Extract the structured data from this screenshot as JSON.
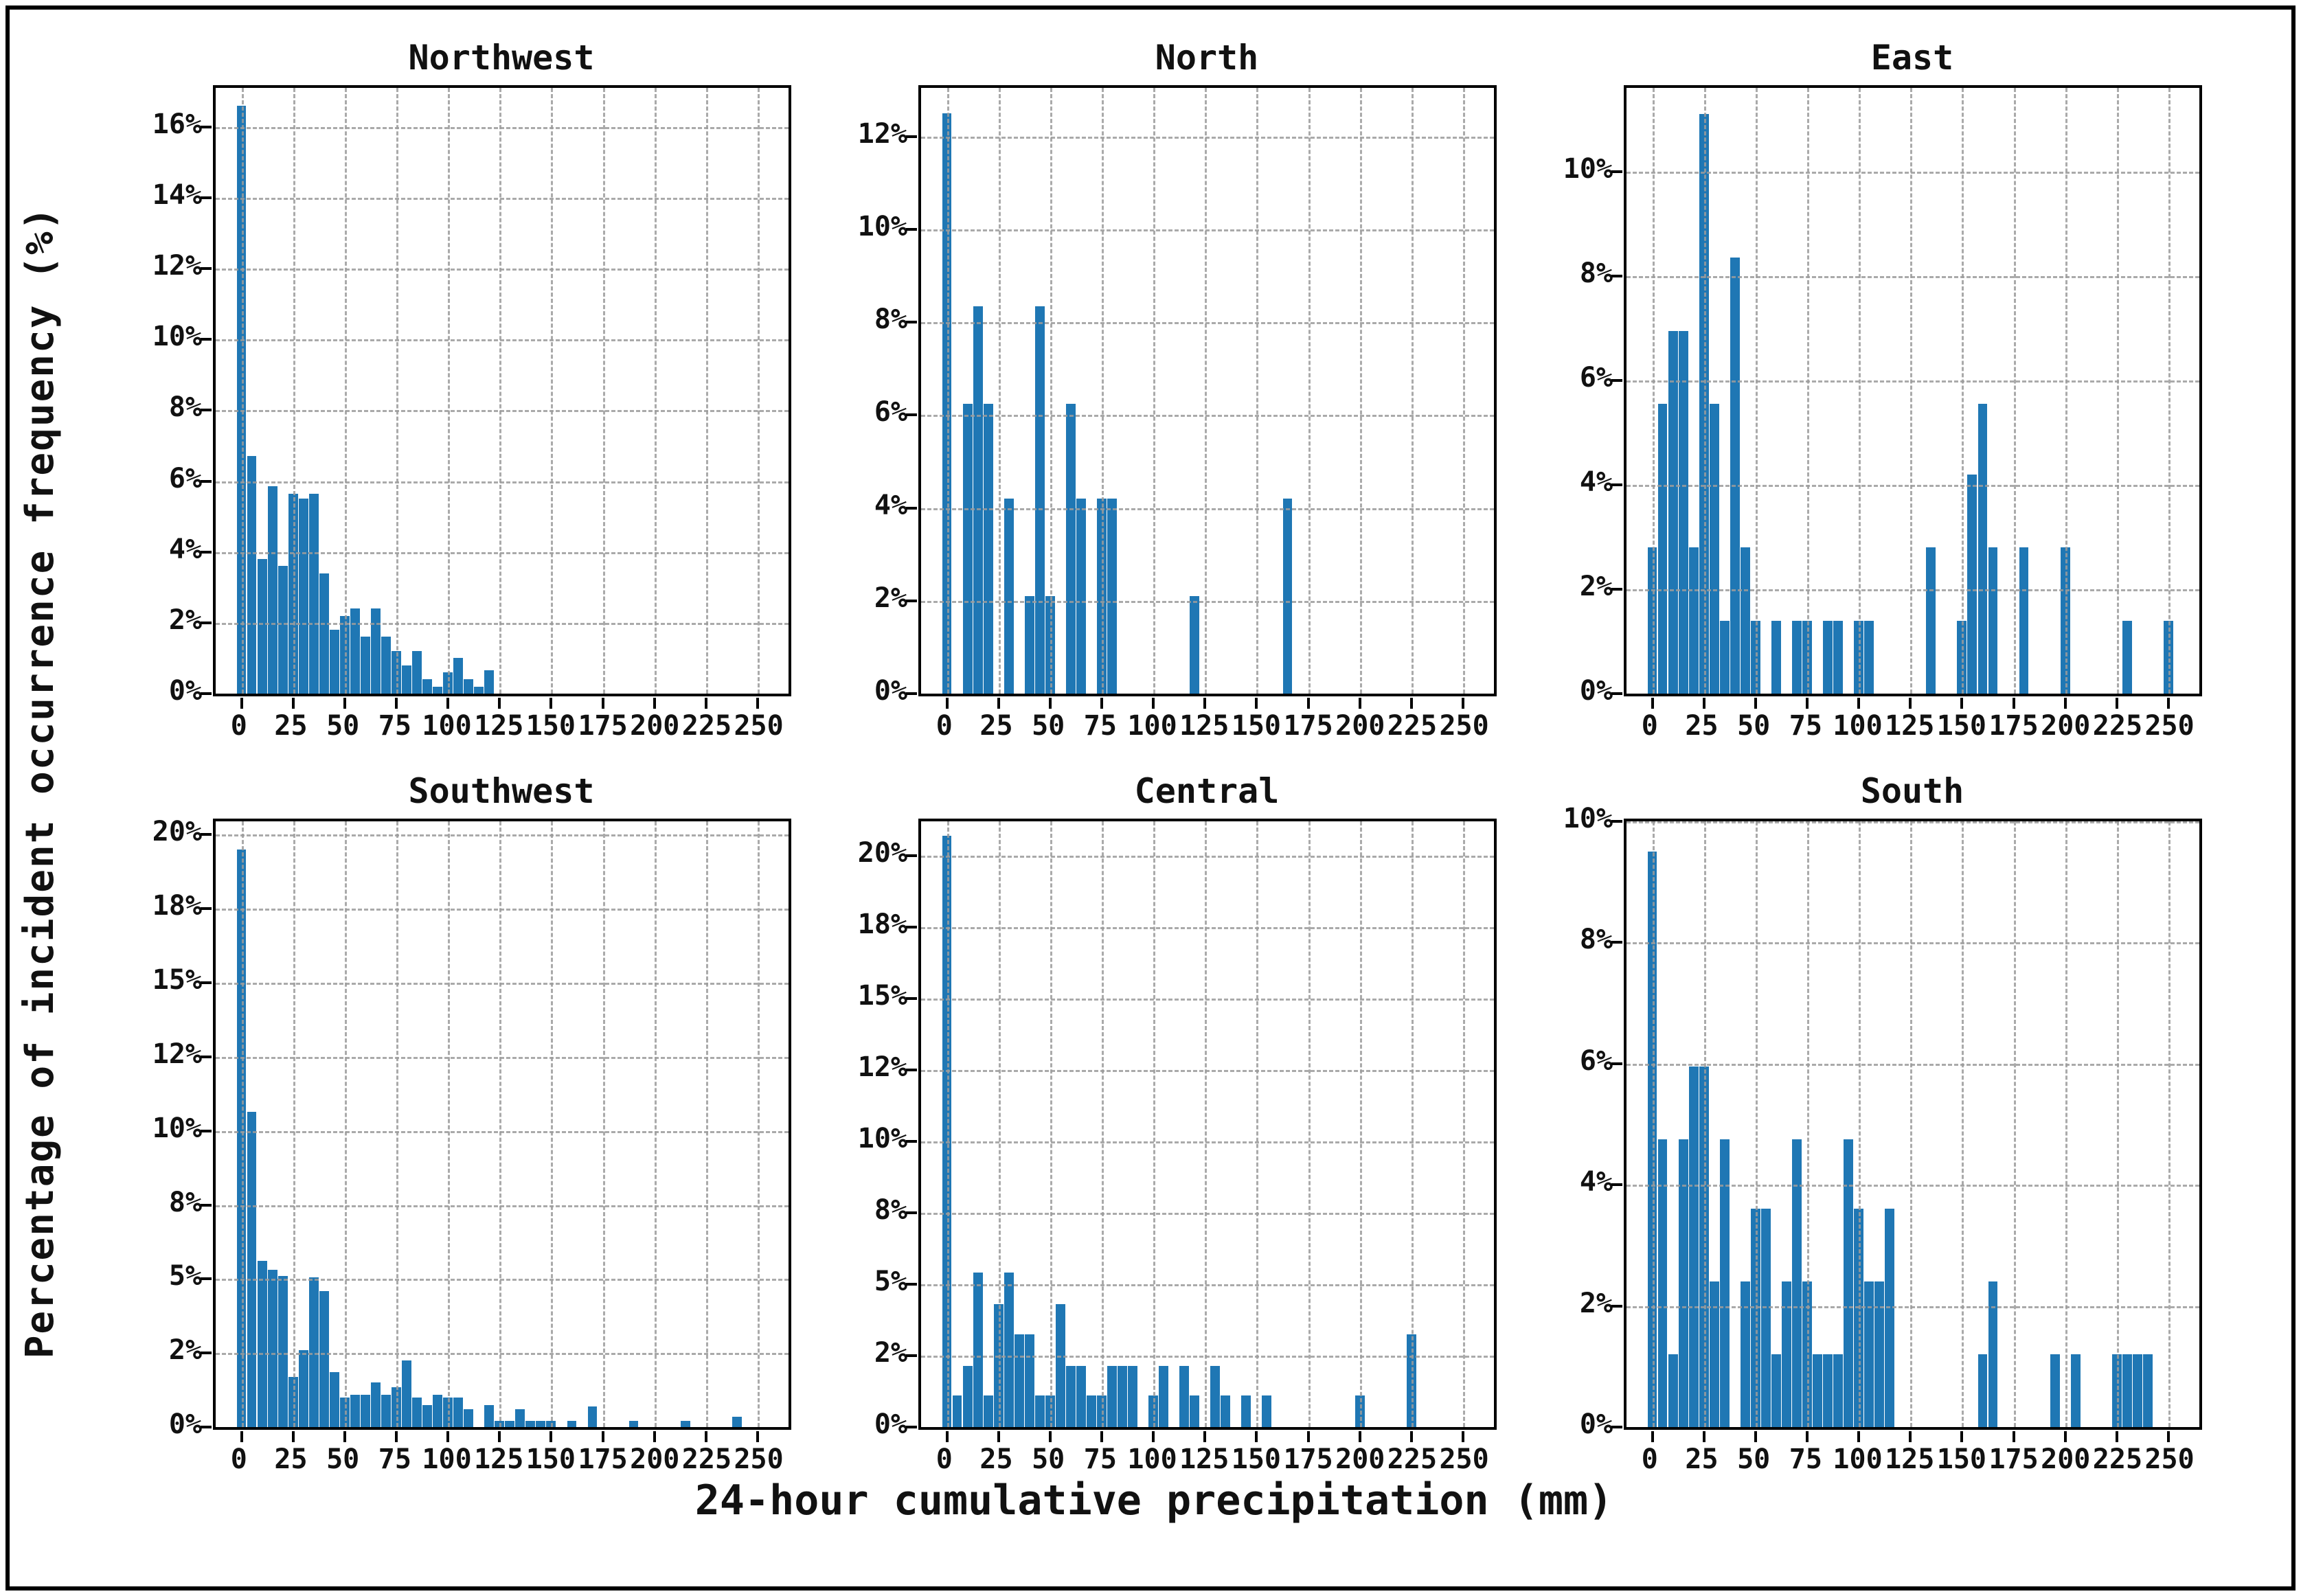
{
  "figure": {
    "ylabel": "Percentage of incident occurrence frequency (%)",
    "xlabel": "24-hour cumulative precipitation (mm)",
    "bar_color": "#1f77b4",
    "grid_color": "#9c9c9c",
    "axis_color": "#000000",
    "xlim": [
      -12.5,
      265
    ],
    "xticks": [
      0,
      25,
      50,
      75,
      100,
      125,
      150,
      175,
      200,
      225,
      250
    ],
    "bin_width_mm": 5,
    "grid": "dashed, drawn over bars",
    "layout": "2 rows x 3 columns of histograms, shared axis labels"
  },
  "chart_data": [
    {
      "type": "bar",
      "title": "Northwest",
      "xlabel": "24-hour cumulative precipitation (mm)",
      "ylabel": "Percentage of incident occurrence frequency (%)",
      "ylim": [
        0,
        17.1
      ],
      "yticks": [
        {
          "v": 0,
          "label": "0%"
        },
        {
          "v": 2,
          "label": "2%"
        },
        {
          "v": 4,
          "label": "4%"
        },
        {
          "v": 6,
          "label": "6%"
        },
        {
          "v": 8,
          "label": "8%"
        },
        {
          "v": 10,
          "label": "10%"
        },
        {
          "v": 12,
          "label": "12%"
        },
        {
          "v": 14,
          "label": "14%"
        },
        {
          "v": 16,
          "label": "16%"
        }
      ],
      "bars": [
        [
          0,
          16.6
        ],
        [
          5,
          6.7
        ],
        [
          10,
          3.8
        ],
        [
          15,
          5.85
        ],
        [
          20,
          3.6
        ],
        [
          25,
          5.65
        ],
        [
          30,
          5.5
        ],
        [
          35,
          5.65
        ],
        [
          40,
          3.4
        ],
        [
          45,
          1.8
        ],
        [
          50,
          2.2
        ],
        [
          55,
          2.4
        ],
        [
          60,
          1.6
        ],
        [
          65,
          2.4
        ],
        [
          70,
          1.6
        ],
        [
          75,
          1.2
        ],
        [
          80,
          0.8
        ],
        [
          85,
          1.2
        ],
        [
          90,
          0.4
        ],
        [
          95,
          0.2
        ],
        [
          100,
          0.6
        ],
        [
          105,
          1.0
        ],
        [
          110,
          0.4
        ],
        [
          115,
          0.2
        ],
        [
          120,
          0.65
        ]
      ]
    },
    {
      "type": "bar",
      "title": "North",
      "xlabel": "24-hour cumulative precipitation (mm)",
      "ylabel": "Percentage of incident occurrence frequency (%)",
      "ylim": [
        0,
        13.05
      ],
      "yticks": [
        {
          "v": 0,
          "label": "0%"
        },
        {
          "v": 2,
          "label": "2%"
        },
        {
          "v": 4,
          "label": "4%"
        },
        {
          "v": 6,
          "label": "6%"
        },
        {
          "v": 8,
          "label": "8%"
        },
        {
          "v": 10,
          "label": "10%"
        },
        {
          "v": 12,
          "label": "12%"
        }
      ],
      "bars": [
        [
          0,
          12.5
        ],
        [
          10,
          6.25
        ],
        [
          15,
          8.35
        ],
        [
          20,
          6.25
        ],
        [
          30,
          4.2
        ],
        [
          40,
          2.1
        ],
        [
          45,
          8.35
        ],
        [
          50,
          2.1
        ],
        [
          60,
          6.25
        ],
        [
          65,
          4.2
        ],
        [
          75,
          4.2
        ],
        [
          80,
          4.2
        ],
        [
          120,
          2.1
        ],
        [
          165,
          4.2
        ]
      ]
    },
    {
      "type": "bar",
      "title": "East",
      "xlabel": "24-hour cumulative precipitation (mm)",
      "ylabel": "Percentage of incident occurrence frequency (%)",
      "ylim": [
        0,
        11.6
      ],
      "yticks": [
        {
          "v": 0,
          "label": "0%"
        },
        {
          "v": 2,
          "label": "2%"
        },
        {
          "v": 4,
          "label": "4%"
        },
        {
          "v": 6,
          "label": "6%"
        },
        {
          "v": 8,
          "label": "8%"
        },
        {
          "v": 10,
          "label": "10%"
        }
      ],
      "bars": [
        [
          0,
          2.8
        ],
        [
          5,
          5.55
        ],
        [
          10,
          6.95
        ],
        [
          15,
          6.95
        ],
        [
          20,
          2.8
        ],
        [
          25,
          11.1
        ],
        [
          30,
          5.55
        ],
        [
          35,
          1.4
        ],
        [
          40,
          8.35
        ],
        [
          45,
          2.8
        ],
        [
          50,
          1.4
        ],
        [
          60,
          1.4
        ],
        [
          70,
          1.4
        ],
        [
          75,
          1.4
        ],
        [
          85,
          1.4
        ],
        [
          90,
          1.4
        ],
        [
          100,
          1.4
        ],
        [
          105,
          1.4
        ],
        [
          135,
          2.8
        ],
        [
          150,
          1.4
        ],
        [
          155,
          4.2
        ],
        [
          160,
          5.55
        ],
        [
          165,
          2.8
        ],
        [
          180,
          2.8
        ],
        [
          200,
          2.8
        ],
        [
          230,
          1.4
        ],
        [
          250,
          1.4
        ]
      ]
    },
    {
      "type": "bar",
      "title": "Southwest",
      "xlabel": "24-hour cumulative precipitation (mm)",
      "ylabel": "Percentage of incident occurrence frequency (%)",
      "ylim": [
        0,
        20.45
      ],
      "yticks": [
        {
          "v": 0,
          "label": "0%"
        },
        {
          "v": 2.5,
          "label": "2%"
        },
        {
          "v": 5,
          "label": "5%"
        },
        {
          "v": 7.5,
          "label": "8%"
        },
        {
          "v": 10,
          "label": "10%"
        },
        {
          "v": 12.5,
          "label": "12%"
        },
        {
          "v": 15,
          "label": "15%"
        },
        {
          "v": 17.5,
          "label": "18%"
        },
        {
          "v": 20,
          "label": "20%"
        }
      ],
      "bars": [
        [
          0,
          19.5
        ],
        [
          5,
          10.65
        ],
        [
          10,
          5.6
        ],
        [
          15,
          5.3
        ],
        [
          20,
          5.1
        ],
        [
          25,
          1.7
        ],
        [
          30,
          2.6
        ],
        [
          35,
          5.05
        ],
        [
          40,
          4.6
        ],
        [
          45,
          1.85
        ],
        [
          50,
          1.0
        ],
        [
          55,
          1.1
        ],
        [
          60,
          1.1
        ],
        [
          65,
          1.5
        ],
        [
          70,
          1.1
        ],
        [
          75,
          1.35
        ],
        [
          80,
          2.25
        ],
        [
          85,
          1.0
        ],
        [
          90,
          0.75
        ],
        [
          95,
          1.1
        ],
        [
          100,
          1.0
        ],
        [
          105,
          1.0
        ],
        [
          110,
          0.6
        ],
        [
          120,
          0.75
        ],
        [
          125,
          0.2
        ],
        [
          130,
          0.2
        ],
        [
          135,
          0.6
        ],
        [
          140,
          0.2
        ],
        [
          145,
          0.2
        ],
        [
          150,
          0.2
        ],
        [
          160,
          0.2
        ],
        [
          170,
          0.7
        ],
        [
          190,
          0.2
        ],
        [
          215,
          0.2
        ],
        [
          240,
          0.35
        ]
      ]
    },
    {
      "type": "bar",
      "title": "Central",
      "xlabel": "24-hour cumulative precipitation (mm)",
      "ylabel": "Percentage of incident occurrence frequency (%)",
      "ylim": [
        0,
        21.2
      ],
      "yticks": [
        {
          "v": 0,
          "label": "0%"
        },
        {
          "v": 2.5,
          "label": "2%"
        },
        {
          "v": 5,
          "label": "5%"
        },
        {
          "v": 7.5,
          "label": "8%"
        },
        {
          "v": 10,
          "label": "10%"
        },
        {
          "v": 12.5,
          "label": "12%"
        },
        {
          "v": 15,
          "label": "15%"
        },
        {
          "v": 17.5,
          "label": "18%"
        },
        {
          "v": 20,
          "label": "20%"
        }
      ],
      "bars": [
        [
          0,
          20.7
        ],
        [
          5,
          1.1
        ],
        [
          10,
          2.15
        ],
        [
          15,
          5.4
        ],
        [
          20,
          1.1
        ],
        [
          25,
          4.3
        ],
        [
          30,
          5.4
        ],
        [
          35,
          3.25
        ],
        [
          40,
          3.25
        ],
        [
          45,
          1.1
        ],
        [
          50,
          1.1
        ],
        [
          55,
          4.3
        ],
        [
          60,
          2.15
        ],
        [
          65,
          2.15
        ],
        [
          70,
          1.1
        ],
        [
          75,
          1.1
        ],
        [
          80,
          2.15
        ],
        [
          85,
          2.15
        ],
        [
          90,
          2.15
        ],
        [
          100,
          1.1
        ],
        [
          105,
          2.15
        ],
        [
          115,
          2.15
        ],
        [
          120,
          1.1
        ],
        [
          130,
          2.15
        ],
        [
          135,
          1.1
        ],
        [
          145,
          1.1
        ],
        [
          155,
          1.1
        ],
        [
          200,
          1.1
        ],
        [
          225,
          3.25
        ]
      ]
    },
    {
      "type": "bar",
      "title": "South",
      "xlabel": "24-hour cumulative precipitation (mm)",
      "ylabel": "Percentage of incident occurrence frequency (%)",
      "ylim": [
        0,
        10.0
      ],
      "yticks": [
        {
          "v": 0,
          "label": "0%"
        },
        {
          "v": 2,
          "label": "2%"
        },
        {
          "v": 4,
          "label": "4%"
        },
        {
          "v": 6,
          "label": "6%"
        },
        {
          "v": 8,
          "label": "8%"
        },
        {
          "v": 10,
          "label": "10%"
        }
      ],
      "bars": [
        [
          0,
          9.5
        ],
        [
          5,
          4.75
        ],
        [
          10,
          1.2
        ],
        [
          15,
          4.75
        ],
        [
          20,
          5.95
        ],
        [
          25,
          5.95
        ],
        [
          30,
          2.4
        ],
        [
          35,
          4.75
        ],
        [
          45,
          2.4
        ],
        [
          50,
          3.6
        ],
        [
          55,
          3.6
        ],
        [
          60,
          1.2
        ],
        [
          65,
          2.4
        ],
        [
          70,
          4.75
        ],
        [
          75,
          2.4
        ],
        [
          80,
          1.2
        ],
        [
          85,
          1.2
        ],
        [
          90,
          1.2
        ],
        [
          95,
          4.75
        ],
        [
          100,
          3.6
        ],
        [
          105,
          2.4
        ],
        [
          110,
          2.4
        ],
        [
          115,
          3.6
        ],
        [
          160,
          1.2
        ],
        [
          165,
          2.4
        ],
        [
          195,
          1.2
        ],
        [
          205,
          1.2
        ],
        [
          225,
          1.2
        ],
        [
          230,
          1.2
        ],
        [
          235,
          1.2
        ],
        [
          240,
          1.2
        ]
      ]
    }
  ]
}
